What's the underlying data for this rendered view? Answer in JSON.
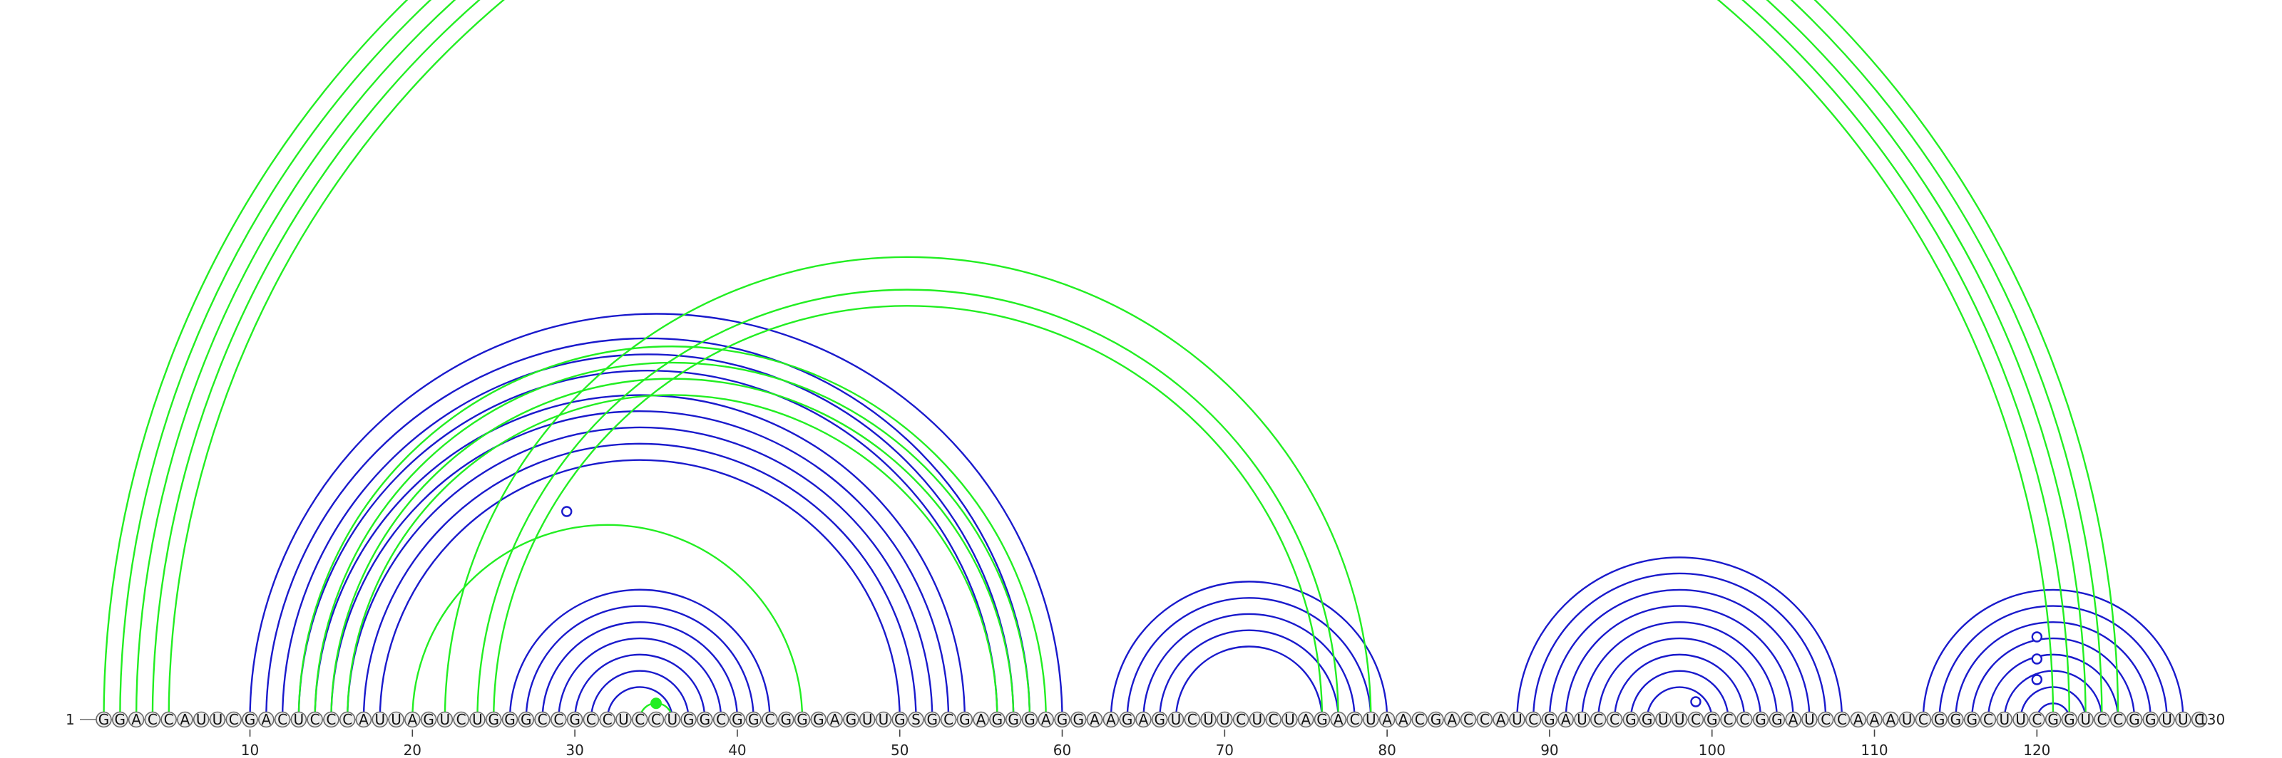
{
  "sequence": "GGACCAUUCGACUCCCAUUAGUCUGGGCCGCCUCCUGGCGGCGGGAGUUGSGCGAGGGAGGAAGAGUCUUCUCUAGACUAACGACCAUCGAUCCGGUUCGCCGGAUCCAAAUCGGGCUUCGGUCCGGUUC",
  "start_label": "1",
  "end_label": "130",
  "ticks": [
    "10",
    "20",
    "30",
    "40",
    "50",
    "60",
    "70",
    "80",
    "90",
    "100",
    "110",
    "120"
  ],
  "colors": {
    "green": "#22ee22",
    "blue": "#1a1acc",
    "circle_fill": "#ececec",
    "circle_stroke": "#6a6a6a"
  },
  "chart_data": {
    "type": "arc-diagram",
    "length": 130,
    "green_arcs": [
      [
        1,
        125
      ],
      [
        2,
        124
      ],
      [
        3,
        123
      ],
      [
        4,
        122
      ],
      [
        5,
        121
      ],
      [
        13,
        59
      ],
      [
        14,
        58
      ],
      [
        15,
        57
      ],
      [
        16,
        56
      ],
      [
        20,
        44
      ],
      [
        22,
        79
      ],
      [
        24,
        77
      ],
      [
        25,
        76
      ],
      [
        34,
        36
      ]
    ],
    "blue_arcs": [
      [
        10,
        60
      ],
      [
        11,
        58
      ],
      [
        12,
        57
      ],
      [
        13,
        56
      ],
      [
        14,
        54
      ],
      [
        15,
        53
      ],
      [
        16,
        52
      ],
      [
        17,
        51
      ],
      [
        18,
        50
      ],
      [
        26,
        42
      ],
      [
        27,
        41
      ],
      [
        28,
        40
      ],
      [
        29,
        39
      ],
      [
        30,
        38
      ],
      [
        31,
        37
      ],
      [
        32,
        36
      ],
      [
        63,
        80
      ],
      [
        64,
        79
      ],
      [
        65,
        78
      ],
      [
        66,
        77
      ],
      [
        67,
        76
      ],
      [
        88,
        108
      ],
      [
        89,
        107
      ],
      [
        90,
        106
      ],
      [
        91,
        105
      ],
      [
        92,
        104
      ],
      [
        93,
        103
      ],
      [
        94,
        102
      ],
      [
        95,
        101
      ],
      [
        96,
        100
      ],
      [
        113,
        129
      ],
      [
        114,
        128
      ],
      [
        115,
        127
      ],
      [
        116,
        126
      ],
      [
        117,
        125
      ],
      [
        118,
        124
      ],
      [
        119,
        123
      ],
      [
        120,
        122
      ]
    ],
    "green_markers": [
      35
    ],
    "blue_markers": [
      29.5,
      99,
      120,
      120,
      120
    ]
  }
}
